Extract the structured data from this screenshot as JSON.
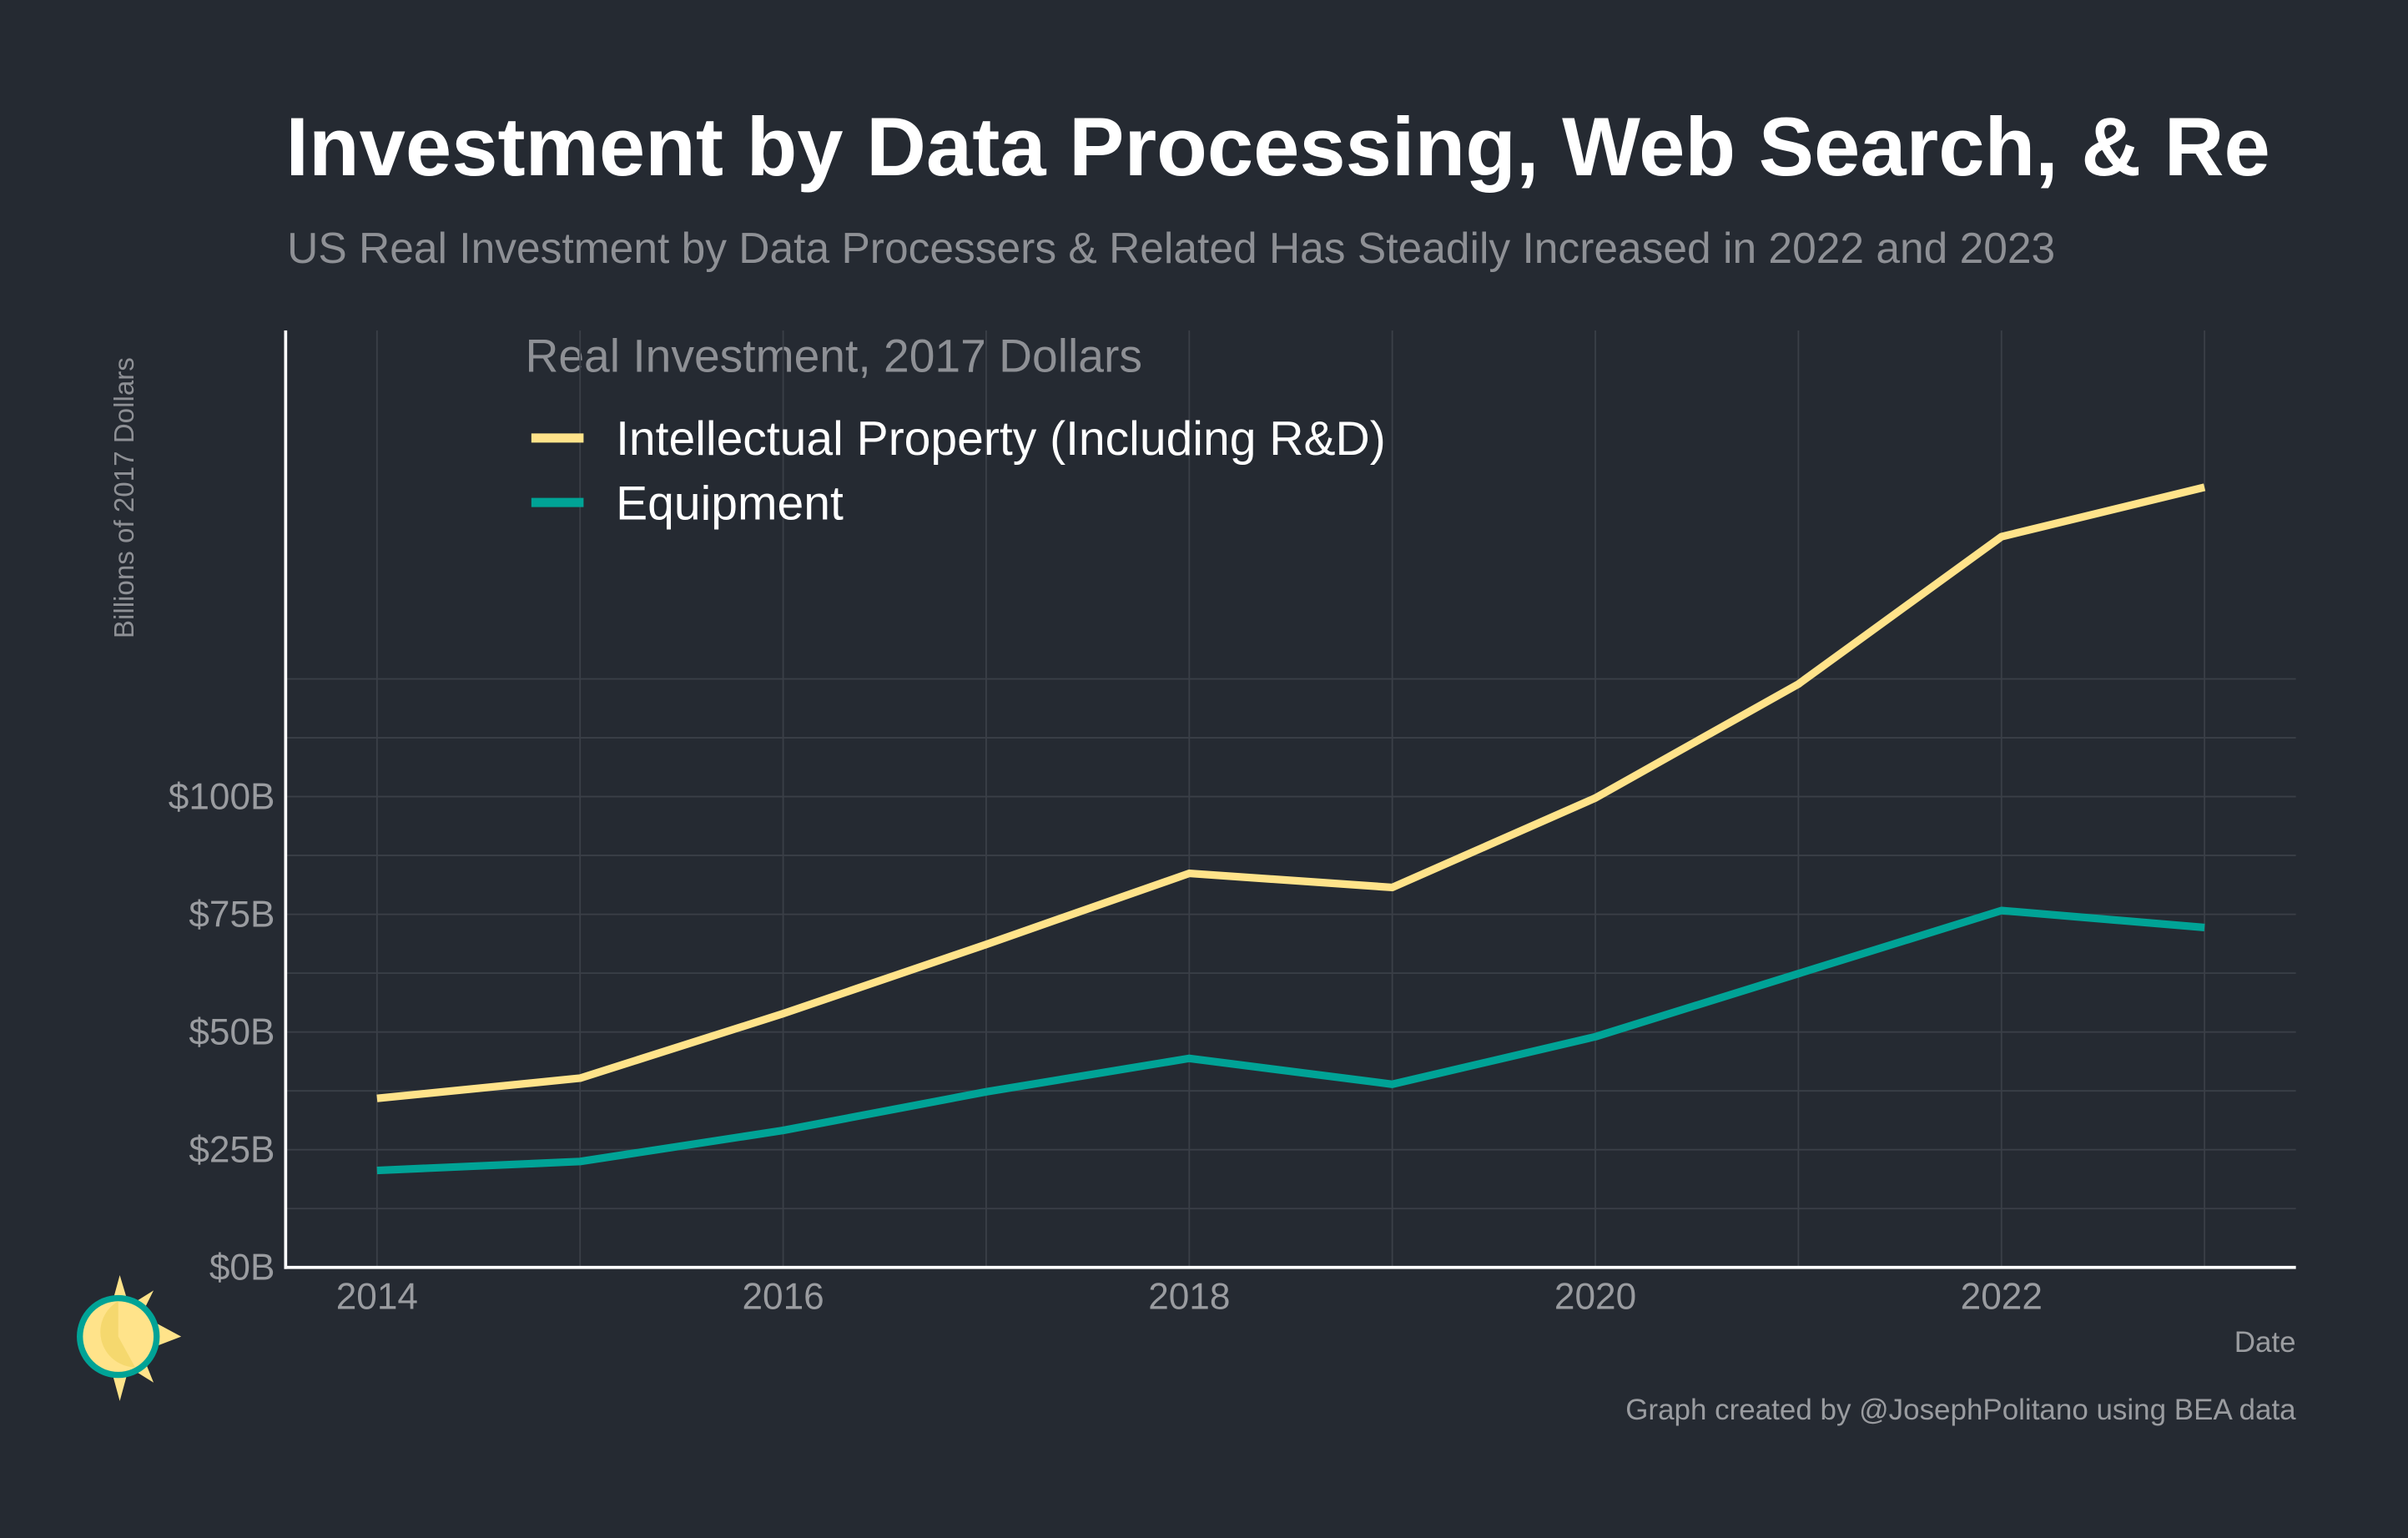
{
  "chart_data": {
    "type": "line",
    "title": "Investment by Data Processing, Web Search, & Re",
    "subtitle": "US Real Investment by Data Processers & Related Has Steadily Increased in 2022 and 2023",
    "y_label": "Billions of 2017 Dollars",
    "x_label": "Date",
    "legend_title": "Real Investment, 2017 Dollars",
    "caption": "Graph created by @JosephPolitano using BEA data",
    "x": [
      2014,
      2015,
      2016,
      2017,
      2018,
      2019,
      2020,
      2021,
      2022,
      2023
    ],
    "series": [
      {
        "name": "Intellectual Property (Including R&D)",
        "color": "#ffe38a",
        "values": [
          35.9,
          40.2,
          53.9,
          68.6,
          83.7,
          80.7,
          99.7,
          123.9,
          155.2,
          165.7
        ]
      },
      {
        "name": "Equipment",
        "color": "#00a396",
        "values": [
          20.6,
          22.5,
          29.1,
          37.3,
          44.4,
          38.9,
          49.0,
          62.4,
          75.8,
          72.2
        ]
      }
    ],
    "xlim": [
      2013.55,
      2023.45
    ],
    "xticks": [
      2014,
      2016,
      2018,
      2020,
      2022
    ],
    "xgrid": [
      2015,
      2017,
      2019,
      2021,
      2023
    ],
    "ylim": [
      0,
      199
    ],
    "yticks": [
      {
        "value": 0,
        "label": "$0B"
      },
      {
        "value": 25,
        "label": "$25B"
      },
      {
        "value": 50,
        "label": "$50B"
      },
      {
        "value": 75,
        "label": "$75B"
      },
      {
        "value": 100,
        "label": "$100B"
      }
    ],
    "ygrid": [
      12.5,
      37.5,
      62.5,
      87.5,
      112.5,
      125
    ],
    "grid": true,
    "legend_position": "top-left"
  }
}
